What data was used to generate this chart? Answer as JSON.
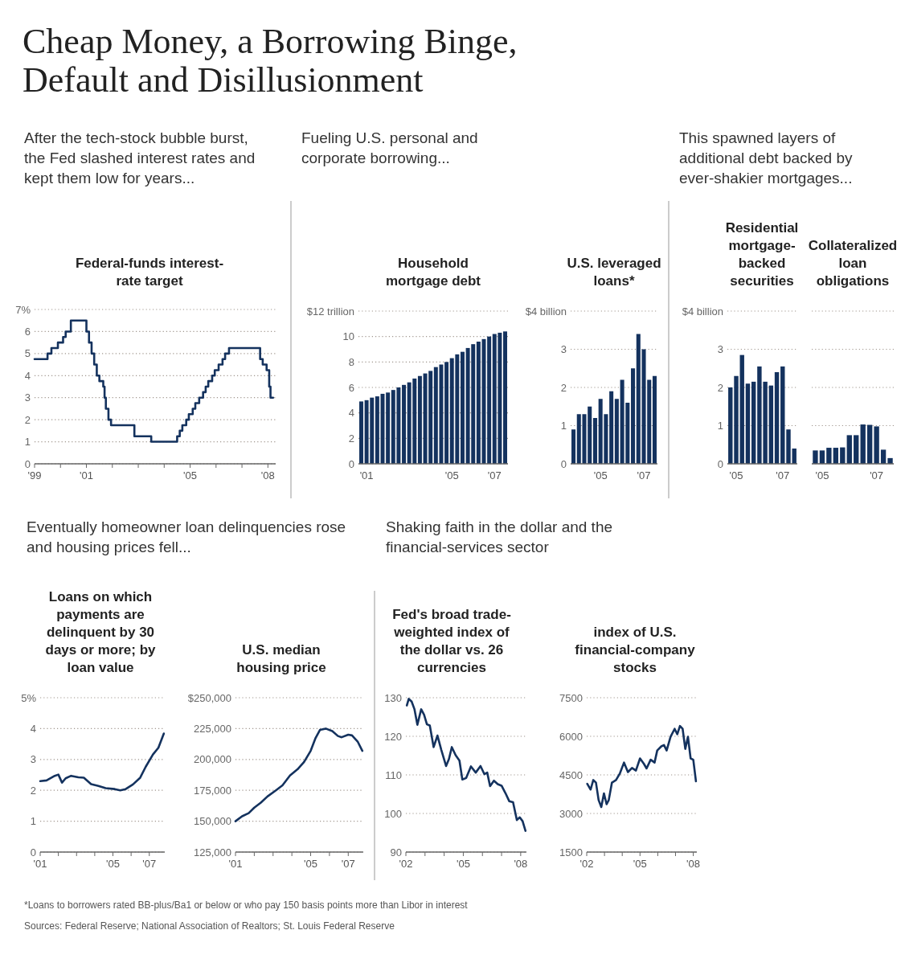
{
  "chart_data": [
    {
      "type": "step",
      "title": "Federal-funds interest-rate target",
      "subtitle": "After the tech-stock bubble burst, the Fed slashed interest rates and kept them low for years...",
      "annotations": [
        "Cheap Money, a Borrowing Binge, Default and Disillusionment"
      ],
      "color": "#14325e",
      "x": [
        1999.0,
        1999.5,
        1999.65,
        1999.9,
        2000.1,
        2000.2,
        2000.4,
        2001.0,
        2001.1,
        2001.2,
        2001.3,
        2001.4,
        2001.5,
        2001.65,
        2001.7,
        2001.75,
        2001.85,
        2001.95,
        2002.85,
        2003.5,
        2004.5,
        2004.6,
        2004.7,
        2004.85,
        2004.95,
        2005.1,
        2005.2,
        2005.35,
        2005.5,
        2005.6,
        2005.7,
        2005.85,
        2005.95,
        2006.1,
        2006.25,
        2006.35,
        2006.5,
        2007.7,
        2007.8,
        2007.95,
        2008.05,
        2008.1,
        2008.2
      ],
      "values": [
        4.75,
        5.0,
        5.25,
        5.5,
        5.75,
        6.0,
        6.5,
        6.0,
        5.5,
        5.0,
        4.5,
        4.0,
        3.75,
        3.5,
        3.0,
        2.5,
        2.0,
        1.75,
        1.25,
        1.0,
        1.25,
        1.5,
        1.75,
        2.0,
        2.25,
        2.5,
        2.75,
        3.0,
        3.25,
        3.5,
        3.75,
        4.0,
        4.25,
        4.5,
        4.75,
        5.0,
        5.25,
        4.75,
        4.5,
        4.25,
        3.5,
        3.0,
        3.0
      ],
      "xlim": [
        1999,
        2008.3
      ],
      "xticks": [
        {
          "value": 1999,
          "label": "'99"
        },
        {
          "value": 2000,
          "label": null
        },
        {
          "value": 2001,
          "label": "'01"
        },
        {
          "value": 2002,
          "label": null
        },
        {
          "value": 2003,
          "label": null
        },
        {
          "value": 2004,
          "label": null
        },
        {
          "value": 2005,
          "label": "'05"
        },
        {
          "value": 2006,
          "label": null
        },
        {
          "value": 2007,
          "label": null
        },
        {
          "value": 2008,
          "label": "'08"
        }
      ],
      "ylim": [
        0,
        7
      ],
      "yticks": [
        0,
        1,
        2,
        3,
        4,
        5,
        6,
        {
          "value": 7,
          "label": "7%"
        }
      ],
      "grid": "y"
    },
    {
      "type": "bar",
      "title": "Household mortgage debt",
      "subtitle": "Fueling U.S. personal and corporate borrowing...",
      "color": "#14325e",
      "categories": [
        null,
        "'01",
        null,
        null,
        null,
        null,
        null,
        null,
        null,
        null,
        null,
        null,
        null,
        null,
        null,
        null,
        null,
        "'05",
        null,
        null,
        null,
        null,
        null,
        null,
        null,
        "'07",
        null,
        null
      ],
      "values": [
        4.9,
        5.0,
        5.2,
        5.3,
        5.5,
        5.6,
        5.8,
        6.0,
        6.2,
        6.4,
        6.7,
        6.9,
        7.1,
        7.3,
        7.6,
        7.8,
        8.0,
        8.3,
        8.6,
        8.8,
        9.1,
        9.4,
        9.6,
        9.8,
        10.0,
        10.2,
        10.3,
        10.4
      ],
      "ylim": [
        0,
        12
      ],
      "yticks": [
        0,
        2,
        4,
        6,
        8,
        10,
        {
          "value": 12,
          "label": "$12 trillion"
        }
      ],
      "grid": "y"
    },
    {
      "type": "bar",
      "title": "U.S. leveraged loans*",
      "color": "#14325e",
      "categories": [
        null,
        null,
        null,
        null,
        null,
        "'05",
        null,
        null,
        null,
        null,
        null,
        null,
        null,
        "'07",
        null,
        null
      ],
      "values": [
        0.9,
        1.3,
        1.3,
        1.5,
        1.2,
        1.7,
        1.3,
        1.9,
        1.7,
        2.2,
        1.6,
        2.5,
        3.4,
        3.0,
        2.2,
        2.3
      ],
      "ylim": [
        0,
        4
      ],
      "yticks": [
        0,
        1,
        2,
        3,
        {
          "value": 4,
          "label": "$4 billion"
        }
      ],
      "grid": "y"
    },
    {
      "type": "bar",
      "title": "Residential mortgage-backed securities",
      "subtitle": "This spawned layers of additional debt backed by ever-shakier mortgages...",
      "color": "#14325e",
      "categories": [
        null,
        "'05",
        null,
        null,
        null,
        null,
        null,
        null,
        null,
        "'07",
        null,
        null
      ],
      "values": [
        2.0,
        2.3,
        2.85,
        2.1,
        2.15,
        2.55,
        2.15,
        2.05,
        2.4,
        2.55,
        0.9,
        0.4
      ],
      "ylim": [
        0,
        4
      ],
      "yticks": [
        0,
        1,
        2,
        3,
        {
          "value": 4,
          "label": "$4 billion"
        }
      ],
      "grid": "y"
    },
    {
      "type": "bar",
      "title": "Collateralized loan obligations",
      "color": "#14325e",
      "categories": [
        null,
        "'05",
        null,
        null,
        null,
        null,
        null,
        null,
        null,
        "'07",
        null,
        null
      ],
      "values": [
        0.35,
        0.35,
        0.42,
        0.42,
        0.43,
        0.75,
        0.75,
        1.03,
        1.02,
        0.98,
        0.37,
        0.15
      ],
      "ylim": [
        0,
        4
      ],
      "yticks": [
        0,
        1,
        2,
        3,
        4
      ],
      "grid": "y",
      "tick_labels": "x"
    },
    {
      "type": "line",
      "title": "Loans on which payments are delinquent by 30 days or more; by loan value",
      "subtitle": "Eventually homeowner loan delinquencies rose and housing prices fell...",
      "color": "#14325e",
      "x": [
        2001.0,
        2001.35,
        2001.8,
        2002.0,
        2002.2,
        2002.4,
        2002.7,
        2003.1,
        2003.4,
        2003.8,
        2004.2,
        2004.6,
        2005.1,
        2005.4,
        2005.7,
        2006.1,
        2006.5,
        2006.8,
        2007.2,
        2007.5,
        2007.8
      ],
      "values": [
        2.3,
        2.32,
        2.47,
        2.51,
        2.25,
        2.39,
        2.47,
        2.42,
        2.41,
        2.2,
        2.14,
        2.07,
        2.04,
        2.0,
        2.04,
        2.19,
        2.41,
        2.76,
        3.16,
        3.38,
        3.84
      ],
      "xlim": [
        2001,
        2007.85
      ],
      "xticks": [
        {
          "value": 2001,
          "label": "'01"
        },
        {
          "value": 2002,
          "label": null
        },
        {
          "value": 2003,
          "label": null
        },
        {
          "value": 2004,
          "label": null
        },
        {
          "value": 2005,
          "label": "'05"
        },
        {
          "value": 2006,
          "label": null
        },
        {
          "value": 2007,
          "label": "'07"
        }
      ],
      "ylim": [
        0,
        5
      ],
      "yticks": [
        0,
        1,
        2,
        3,
        4,
        {
          "value": 5,
          "label": "5%"
        }
      ],
      "grid": "y"
    },
    {
      "type": "line",
      "title": "U.S. median housing price",
      "color": "#14325e",
      "x": [
        2001.0,
        2001.35,
        2001.7,
        2002.0,
        2002.35,
        2002.7,
        2003.15,
        2003.5,
        2003.9,
        2004.3,
        2004.65,
        2005.0,
        2005.25,
        2005.5,
        2005.8,
        2006.15,
        2006.45,
        2006.65,
        2007.0,
        2007.2,
        2007.5,
        2007.75
      ],
      "values": [
        150000,
        154000,
        156500,
        161000,
        165000,
        170000,
        175000,
        179000,
        187000,
        192000,
        198000,
        207000,
        217000,
        224000,
        225000,
        223000,
        219000,
        218000,
        220000,
        219500,
        214500,
        207000
      ],
      "xlim": [
        2001,
        2007.8
      ],
      "xticks": [
        {
          "value": 2001,
          "label": "'01"
        },
        {
          "value": 2002,
          "label": null
        },
        {
          "value": 2003,
          "label": null
        },
        {
          "value": 2004,
          "label": null
        },
        {
          "value": 2005,
          "label": "'05"
        },
        {
          "value": 2006,
          "label": null
        },
        {
          "value": 2007,
          "label": "'07"
        }
      ],
      "ylim": [
        125000,
        250000
      ],
      "yticks": [
        {
          "value": 125000,
          "label": "125,000"
        },
        {
          "value": 150000,
          "label": "150,000"
        },
        {
          "value": 175000,
          "label": "175,000"
        },
        {
          "value": 200000,
          "label": "200,000"
        },
        {
          "value": 225000,
          "label": "225,000"
        },
        {
          "value": 250000,
          "label": "$250,000"
        }
      ],
      "grid": "y"
    },
    {
      "type": "line",
      "title": "Fed's broad trade-weighted index of the dollar vs. 26 currencies",
      "subtitle": "Shaking faith in the dollar and the financial-services sector",
      "color": "#14325e",
      "x": [
        2002.05,
        2002.15,
        2002.3,
        2002.45,
        2002.6,
        2002.8,
        2002.95,
        2003.1,
        2003.25,
        2003.45,
        2003.65,
        2003.85,
        2004.1,
        2004.25,
        2004.4,
        2004.6,
        2004.8,
        2004.95,
        2005.15,
        2005.4,
        2005.65,
        2005.9,
        2006.1,
        2006.25,
        2006.4,
        2006.6,
        2006.8,
        2007.0,
        2007.2,
        2007.4,
        2007.6,
        2007.8,
        2007.95,
        2008.1,
        2008.25
      ],
      "values": [
        128.0,
        129.7,
        129.0,
        127.0,
        123.0,
        127.0,
        125.6,
        123.1,
        122.8,
        117.2,
        120.2,
        116.5,
        112.3,
        114.1,
        117.2,
        115.1,
        113.7,
        108.8,
        109.2,
        112.2,
        110.6,
        112.3,
        110.2,
        110.6,
        107.1,
        108.5,
        107.6,
        107.2,
        105.3,
        103.2,
        102.9,
        98.3,
        99.0,
        98.0,
        95.5
      ],
      "xlim": [
        2002,
        2008.3
      ],
      "xticks": [
        {
          "value": 2002,
          "label": "'02"
        },
        {
          "value": 2003,
          "label": null
        },
        {
          "value": 2004,
          "label": null
        },
        {
          "value": 2005,
          "label": "'05"
        },
        {
          "value": 2006,
          "label": null
        },
        {
          "value": 2007,
          "label": null
        },
        {
          "value": 2008,
          "label": "'08"
        }
      ],
      "ylim": [
        90,
        130
      ],
      "yticks": [
        90,
        100,
        110,
        120,
        130
      ],
      "grid": "y"
    },
    {
      "type": "line",
      "title": "index of U.S. financial-company stocks",
      "annotations": [
        "*Loans to borrowers rated BB-plus/Ba1 or below or who pay 150 basis points more than Libor in interest",
        "Sources: Federal Reserve; National Association of Realtors; St. Louis Federal Reserve"
      ],
      "color": "#14325e",
      "x": [
        2002.03,
        2002.22,
        2002.37,
        2002.52,
        2002.67,
        2002.82,
        2002.97,
        2003.12,
        2003.24,
        2003.42,
        2003.65,
        2003.87,
        2004.1,
        2004.32,
        2004.55,
        2004.77,
        2005.0,
        2005.22,
        2005.37,
        2005.6,
        2005.82,
        2005.97,
        2006.2,
        2006.35,
        2006.5,
        2006.72,
        2006.95,
        2007.1,
        2007.25,
        2007.4,
        2007.55,
        2007.7,
        2007.85,
        2008.0,
        2008.15
      ],
      "values": [
        4150,
        3930,
        4300,
        4200,
        3520,
        3250,
        3780,
        3360,
        3520,
        4200,
        4300,
        4560,
        4980,
        4610,
        4770,
        4670,
        5140,
        4930,
        4750,
        5090,
        4980,
        5450,
        5610,
        5660,
        5450,
        5980,
        6290,
        6080,
        6400,
        6290,
        5510,
        5980,
        5140,
        5090,
        4250
      ],
      "xlim": [
        2002,
        2008.2
      ],
      "xticks": [
        {
          "value": 2002,
          "label": "'02"
        },
        {
          "value": 2003,
          "label": null
        },
        {
          "value": 2004,
          "label": null
        },
        {
          "value": 2005,
          "label": "'05"
        },
        {
          "value": 2006,
          "label": null
        },
        {
          "value": 2007,
          "label": null
        },
        {
          "value": 2008,
          "label": "'08"
        }
      ],
      "ylim": [
        1500,
        7500
      ],
      "yticks": [
        1500,
        3000,
        4500,
        6000,
        7500
      ],
      "grid": "y"
    }
  ]
}
